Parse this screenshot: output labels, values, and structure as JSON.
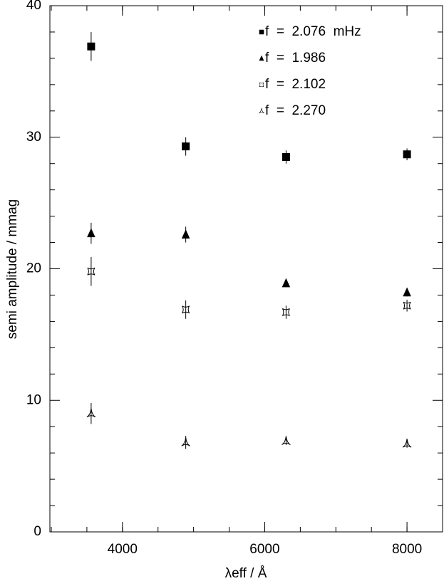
{
  "chart_data": {
    "type": "scatter",
    "xlabel": "λeff / Å",
    "ylabel": "semi amplitude / mmag",
    "xlim": [
      2980,
      8500
    ],
    "ylim": [
      0,
      40
    ],
    "xticks": [
      4000,
      6000,
      8000
    ],
    "yticks": [
      0,
      10,
      20,
      30,
      40
    ],
    "legend": "upper right",
    "series": [
      {
        "name": "f  =  2.076  mHz",
        "marker": "square",
        "color": "#000000",
        "x": [
          3560,
          4890,
          6300,
          8000
        ],
        "values": [
          36.9,
          29.3,
          28.5,
          28.7
        ],
        "errors": [
          1.1,
          0.7,
          0.5,
          0.45
        ]
      },
      {
        "name": "f  =  1.986",
        "marker": "triangle",
        "color": "#000000",
        "x": [
          3560,
          4890,
          6300,
          8000
        ],
        "values": [
          22.7,
          22.6,
          18.9,
          18.2
        ],
        "errors": [
          0.8,
          0.6,
          0.3,
          0.3
        ]
      },
      {
        "name": "f  =  2.102",
        "marker": "star-square",
        "color": "#000000",
        "x": [
          3560,
          4890,
          6300,
          8000
        ],
        "values": [
          19.8,
          16.9,
          16.7,
          17.2
        ],
        "errors": [
          1.1,
          0.7,
          0.5,
          0.45
        ]
      },
      {
        "name": "f  =  2.270",
        "marker": "tri-arrow",
        "color": "#000000",
        "x": [
          3560,
          4890,
          6300,
          8000
        ],
        "values": [
          9.0,
          6.8,
          6.9,
          6.7
        ],
        "errors": [
          0.8,
          0.5,
          0.3,
          0.3
        ]
      }
    ]
  }
}
